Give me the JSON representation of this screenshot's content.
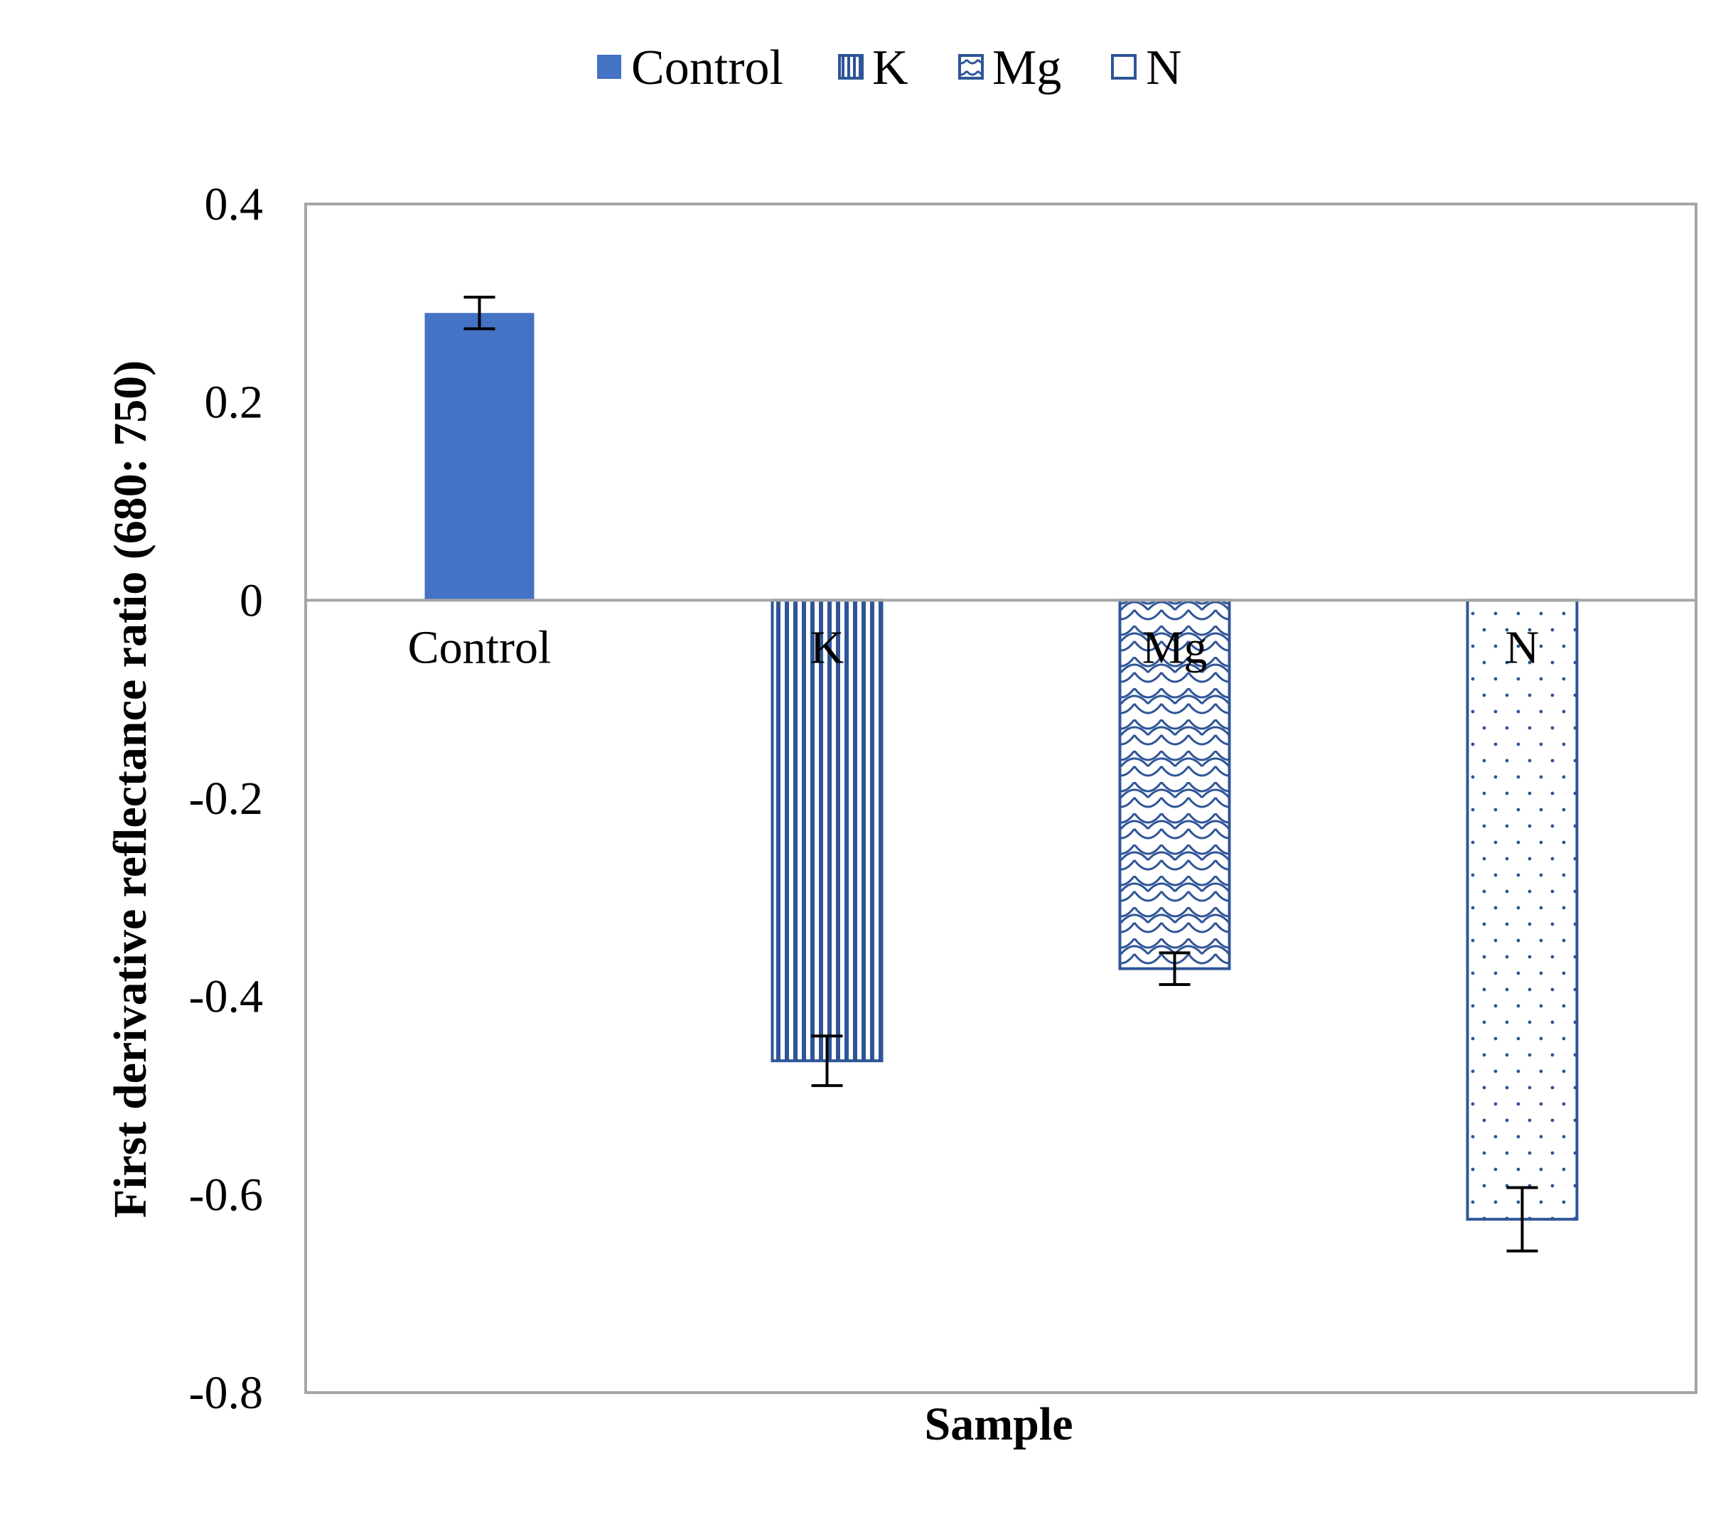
{
  "chart_data": {
    "type": "bar",
    "title": "",
    "xlabel": "Sample",
    "ylabel": "First derivative reflectance ratio (680: 750)",
    "categories": [
      "Control",
      "K",
      "Mg",
      "N"
    ],
    "legend_labels": [
      "Control",
      "K",
      "Mg",
      "N"
    ],
    "values": [
      0.29,
      -0.465,
      -0.372,
      -0.625
    ],
    "errors": [
      0.016,
      0.025,
      0.016,
      0.032
    ],
    "patterns": [
      "solid",
      "vertical-lines",
      "scales",
      "dots"
    ],
    "ylim": [
      -0.8,
      0.4
    ],
    "yticks": [
      "0.4",
      "0.2",
      "0",
      "-0.2",
      "-0.4",
      "-0.6",
      "-0.8"
    ],
    "ytick_values": [
      0.4,
      0.2,
      0,
      -0.2,
      -0.4,
      -0.6,
      -0.8
    ],
    "grid": false,
    "legend_position": "top-center"
  },
  "colors": {
    "bar": "#4472c4",
    "bar_dark": "#2f5597",
    "axis": "#a6a6a6",
    "error": "#000000"
  }
}
